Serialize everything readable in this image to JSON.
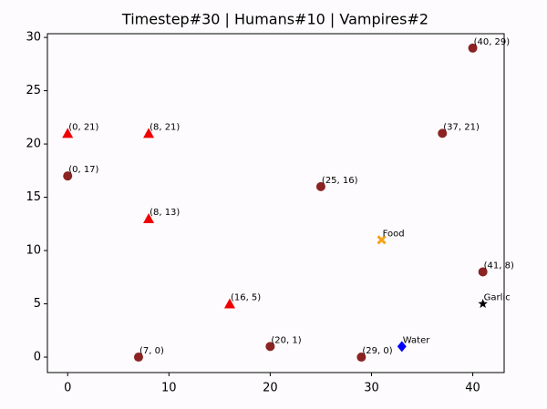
{
  "chart_data": {
    "type": "scatter",
    "title": "Timestep#30 | Humans#10 | Vampires#2",
    "xlim": [
      -2.0,
      43.1
    ],
    "ylim": [
      -1.45,
      30.35
    ],
    "xticks": [
      0,
      10,
      20,
      30,
      40
    ],
    "yticks": [
      0,
      5,
      10,
      15,
      20,
      25,
      30
    ],
    "series": [
      {
        "marker": "circle",
        "color": "#8b2323",
        "x": [
          40,
          37,
          0,
          25,
          41,
          20,
          7,
          29
        ],
        "values": [
          29,
          21,
          17,
          16,
          8,
          1,
          0,
          0
        ],
        "labels": [
          "(40, 29)",
          "(37, 21)",
          "(0, 17)",
          "(25, 16)",
          "(41, 8)",
          "(20, 1)",
          "(7, 0)",
          "(29, 0)"
        ]
      },
      {
        "marker": "triangle",
        "color": "#ee0000",
        "x": [
          0,
          8,
          8,
          16
        ],
        "values": [
          21,
          21,
          13,
          5
        ],
        "labels": [
          "(0, 21)",
          "(8, 21)",
          "(8, 13)",
          "(16, 5)"
        ]
      },
      {
        "marker": "plus",
        "color": "#f5a21b",
        "x": [
          31
        ],
        "values": [
          11
        ],
        "labels": [
          "Food"
        ]
      },
      {
        "marker": "diamond",
        "color": "#0000ff",
        "x": [
          33
        ],
        "values": [
          1
        ],
        "labels": [
          "Water"
        ]
      },
      {
        "marker": "star",
        "color": "#000000",
        "x": [
          41
        ],
        "values": [
          5
        ],
        "labels": [
          "Garlic"
        ]
      }
    ]
  }
}
